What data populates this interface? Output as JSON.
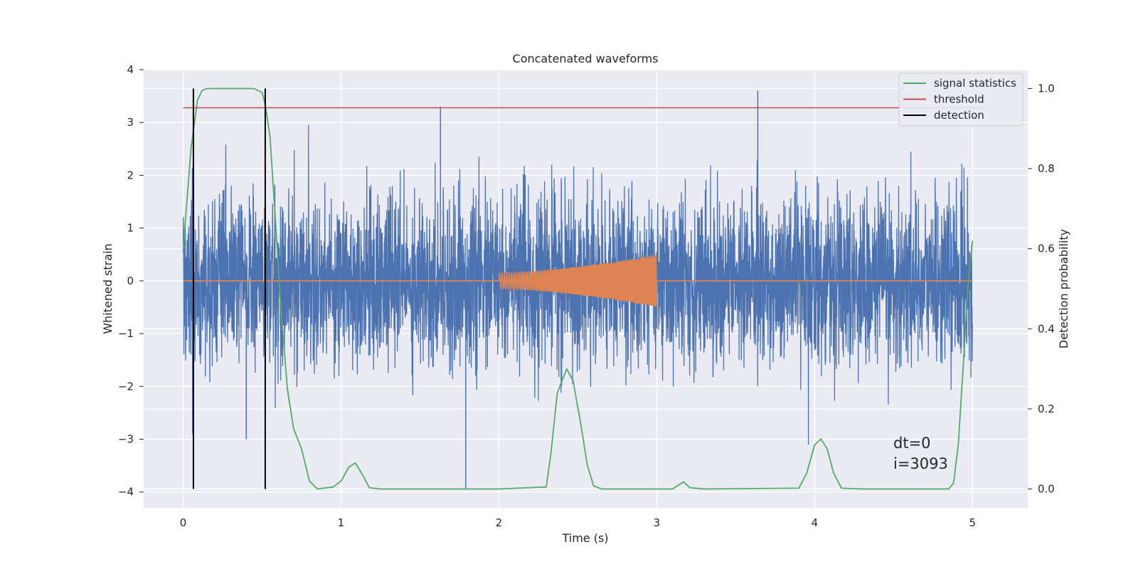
{
  "chart_data": {
    "type": "line",
    "title": "Concatenated waveforms",
    "xlabel": "Time (s)",
    "ylabel_left": "Whitened strain",
    "ylabel_right": "Detection probability",
    "xlim": [
      -0.25,
      5.35
    ],
    "ylim_left": [
      -4.3,
      4.0
    ],
    "ylim_right": [
      -0.047,
      1.047
    ],
    "x_ticks": [
      0,
      1,
      2,
      3,
      4,
      5
    ],
    "x_tick_labels": [
      "0",
      "1",
      "2",
      "3",
      "4",
      "5"
    ],
    "y_left_ticks": [
      -4,
      -3,
      -2,
      -1,
      0,
      1,
      2,
      3,
      4
    ],
    "y_left_tick_labels": [
      "−4",
      "−3",
      "−2",
      "−1",
      "0",
      "1",
      "2",
      "3",
      "4"
    ],
    "y_right_ticks": [
      0.0,
      0.2,
      0.4,
      0.6,
      0.8,
      1.0
    ],
    "y_right_tick_labels": [
      "0.0",
      "0.2",
      "0.4",
      "0.6",
      "0.8",
      "1.0"
    ],
    "grid": true,
    "legend_position": "top-right",
    "legend": [
      {
        "label": "signal statistics",
        "color": "#55a868"
      },
      {
        "label": "threshold",
        "color": "#c44e52"
      },
      {
        "label": "detection",
        "color": "#000000"
      }
    ],
    "series": [
      {
        "kind": "noise",
        "axis": "left",
        "color": "#4c72b0",
        "x_range": [
          0,
          5
        ],
        "typical_peak_range": [
          -2.3,
          2.3
        ],
        "notable_peaks": [
          {
            "x": 1.63,
            "y": 3.3
          },
          {
            "x": 3.64,
            "y": 3.6
          },
          {
            "x": 1.79,
            "y": -3.95
          },
          {
            "x": 0.4,
            "y": -3.0
          },
          {
            "x": 0.06,
            "y": -2.9
          }
        ]
      },
      {
        "kind": "chirp",
        "axis": "left",
        "color": "#dd8452",
        "x_range": [
          2.0,
          3.0
        ],
        "amplitude_start": 0.15,
        "amplitude_end": 0.5
      },
      {
        "name": "signal statistics",
        "axis": "right",
        "color": "#55a868",
        "points": [
          [
            0.0,
            0.6
          ],
          [
            0.05,
            0.85
          ],
          [
            0.09,
            0.97
          ],
          [
            0.12,
            0.995
          ],
          [
            0.15,
            1.0
          ],
          [
            0.3,
            1.0
          ],
          [
            0.45,
            1.0
          ],
          [
            0.5,
            0.99
          ],
          [
            0.52,
            0.96
          ],
          [
            0.55,
            0.88
          ],
          [
            0.58,
            0.7
          ],
          [
            0.62,
            0.45
          ],
          [
            0.66,
            0.25
          ],
          [
            0.7,
            0.15
          ],
          [
            0.75,
            0.1
          ],
          [
            0.8,
            0.02
          ],
          [
            0.85,
            0.0
          ],
          [
            0.95,
            0.005
          ],
          [
            1.0,
            0.02
          ],
          [
            1.05,
            0.055
          ],
          [
            1.09,
            0.065
          ],
          [
            1.13,
            0.04
          ],
          [
            1.18,
            0.003
          ],
          [
            1.25,
            0.0
          ],
          [
            2.0,
            0.0
          ],
          [
            2.3,
            0.005
          ],
          [
            2.33,
            0.09
          ],
          [
            2.37,
            0.24
          ],
          [
            2.43,
            0.3
          ],
          [
            2.47,
            0.27
          ],
          [
            2.52,
            0.16
          ],
          [
            2.56,
            0.06
          ],
          [
            2.6,
            0.008
          ],
          [
            2.65,
            0.0
          ],
          [
            3.1,
            0.0
          ],
          [
            3.17,
            0.018
          ],
          [
            3.21,
            0.003
          ],
          [
            3.3,
            0.0
          ],
          [
            3.9,
            0.002
          ],
          [
            3.95,
            0.04
          ],
          [
            4.0,
            0.11
          ],
          [
            4.04,
            0.125
          ],
          [
            4.08,
            0.1
          ],
          [
            4.12,
            0.04
          ],
          [
            4.17,
            0.002
          ],
          [
            4.3,
            0.0
          ],
          [
            4.85,
            0.0
          ],
          [
            4.88,
            0.015
          ],
          [
            4.91,
            0.11
          ],
          [
            4.94,
            0.3
          ],
          [
            4.97,
            0.5
          ],
          [
            5.0,
            0.62
          ]
        ]
      },
      {
        "name": "threshold",
        "axis": "right",
        "color": "#c44e52",
        "points": [
          [
            0.0,
            0.952
          ],
          [
            5.1,
            0.952
          ]
        ]
      }
    ],
    "detections": [
      0.065,
      0.52
    ],
    "annotations": [
      "dt=0",
      "i=3093"
    ]
  }
}
